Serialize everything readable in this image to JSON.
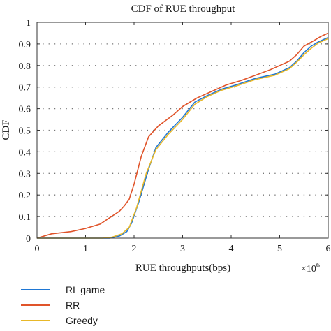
{
  "chart_data": {
    "type": "line",
    "title": "CDF of RUE throughput",
    "xlabel": "RUE throughputs(bps)",
    "ylabel": "CDF",
    "x_multiplier": "×10",
    "x_multiplier_exp": "6",
    "xlim": [
      0,
      6
    ],
    "ylim": [
      0,
      1
    ],
    "xticks": [
      0,
      1,
      2,
      3,
      4,
      5,
      6
    ],
    "xtick_labels": [
      "0",
      "1",
      "2",
      "3",
      "4",
      "5",
      "6"
    ],
    "yticks": [
      0,
      0.1,
      0.2,
      0.3,
      0.4,
      0.5,
      0.6,
      0.7,
      0.8,
      0.9,
      1
    ],
    "ytick_labels": [
      "0",
      "0.1",
      "0.2",
      "0.3",
      "0.4",
      "0.5",
      "0.6",
      "0.7",
      "0.8",
      "0.9",
      "1"
    ],
    "grid": "horizontal dotted",
    "legend_placement": "below plot",
    "series": [
      {
        "name": "RL game",
        "color": "#1f77d4",
        "x": [
          0,
          1.5,
          1.7,
          1.85,
          1.95,
          2.1,
          2.3,
          2.45,
          2.7,
          3.0,
          3.25,
          3.5,
          3.8,
          4.1,
          4.5,
          4.9,
          5.2,
          5.35,
          5.5,
          5.65,
          5.8,
          6.0
        ],
        "y": [
          0,
          0,
          0.01,
          0.03,
          0.07,
          0.17,
          0.32,
          0.42,
          0.49,
          0.56,
          0.63,
          0.66,
          0.69,
          0.71,
          0.74,
          0.76,
          0.79,
          0.82,
          0.86,
          0.89,
          0.91,
          0.93
        ]
      },
      {
        "name": "RR",
        "color": "#e0542a",
        "x": [
          0,
          0.3,
          0.7,
          1.0,
          1.3,
          1.5,
          1.7,
          1.8,
          1.9,
          2.0,
          2.15,
          2.3,
          2.5,
          2.8,
          3.0,
          3.3,
          3.6,
          3.9,
          4.2,
          4.5,
          4.8,
          5.0,
          5.2,
          5.35,
          5.5,
          5.7,
          5.85,
          6.0
        ],
        "y": [
          0,
          0.02,
          0.03,
          0.045,
          0.065,
          0.095,
          0.125,
          0.15,
          0.18,
          0.25,
          0.38,
          0.47,
          0.52,
          0.57,
          0.61,
          0.65,
          0.68,
          0.71,
          0.73,
          0.755,
          0.78,
          0.8,
          0.82,
          0.85,
          0.89,
          0.915,
          0.935,
          0.95
        ]
      },
      {
        "name": "Greedy",
        "color": "#e8b829",
        "x": [
          0,
          1.35,
          1.55,
          1.75,
          1.9,
          2.05,
          2.25,
          2.45,
          2.7,
          3.0,
          3.25,
          3.5,
          3.8,
          4.1,
          4.5,
          4.9,
          5.2,
          5.35,
          5.5,
          5.65,
          5.8,
          6.0
        ],
        "y": [
          0,
          0,
          0.005,
          0.02,
          0.05,
          0.14,
          0.3,
          0.41,
          0.48,
          0.55,
          0.62,
          0.655,
          0.685,
          0.705,
          0.735,
          0.755,
          0.785,
          0.815,
          0.85,
          0.88,
          0.905,
          0.925
        ]
      }
    ]
  }
}
